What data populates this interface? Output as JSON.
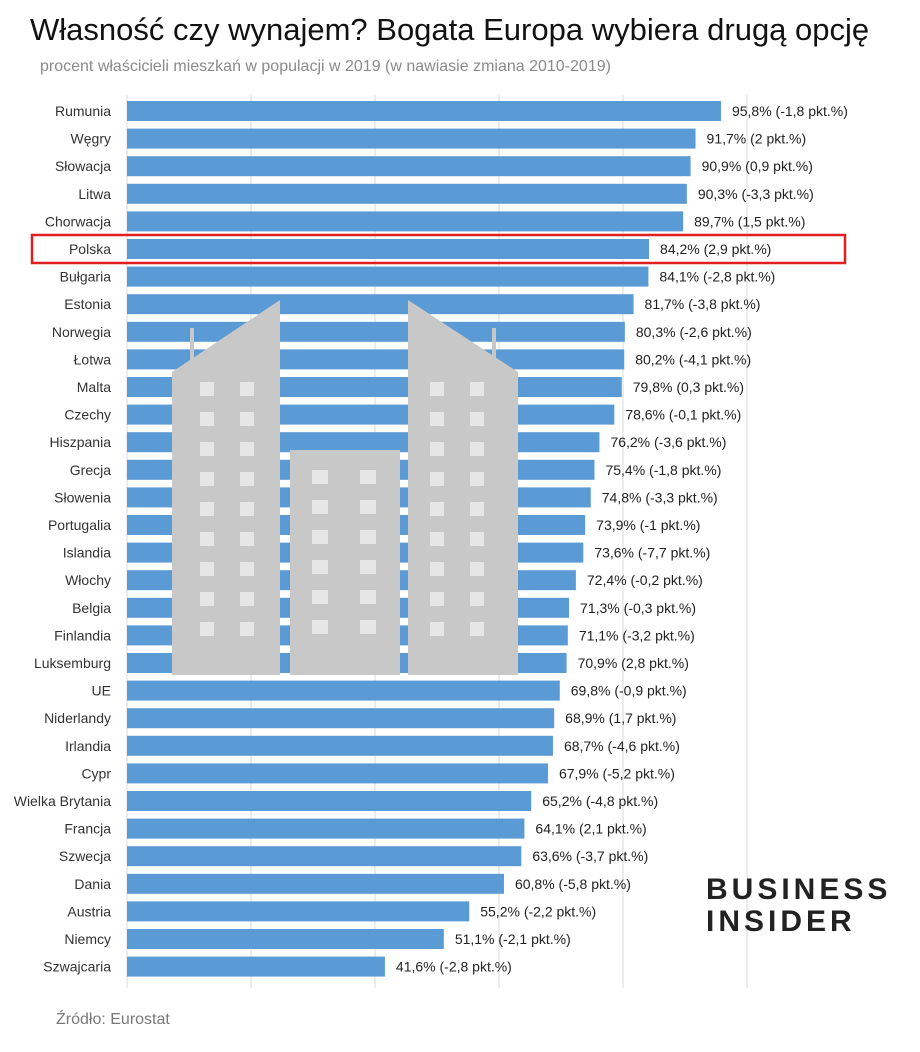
{
  "title": "Własność czy wynajem? Bogata Europa wybiera drugą opcję",
  "subtitle": "procent właścicieli mieszkań w populacji w 2019 (w nawiasie zmiana 2010-2019)",
  "source": "Źródło: Eurostat",
  "logo": {
    "line1": "BUSINESS",
    "line2": "INSIDER"
  },
  "highlight": "Polska",
  "colors": {
    "bar": "#5B9BD5",
    "highlight": "#E02020",
    "grid": "#d9d9d9",
    "building": "#c8c8c8"
  },
  "chart_data": {
    "type": "bar",
    "orientation": "horizontal",
    "title": "Własność czy wynajem? Bogata Europa wybiera drugą opcję",
    "xlabel": "",
    "ylabel": "",
    "xlim": [
      0,
      100
    ],
    "grid": true,
    "categories": [
      "Rumunia",
      "Węgry",
      "Słowacja",
      "Litwa",
      "Chorwacja",
      "Polska",
      "Bułgaria",
      "Estonia",
      "Norwegia",
      "Łotwa",
      "Malta",
      "Czechy",
      "Hiszpania",
      "Grecja",
      "Słowenia",
      "Portugalia",
      "Islandia",
      "Włochy",
      "Belgia",
      "Finlandia",
      "Luksemburg",
      "UE",
      "Niderlandy",
      "Irlandia",
      "Cypr",
      "Wielka Brytania",
      "Francja",
      "Szwecja",
      "Dania",
      "Austria",
      "Niemcy",
      "Szwajcaria"
    ],
    "values": [
      95.8,
      91.7,
      90.9,
      90.3,
      89.7,
      84.2,
      84.1,
      81.7,
      80.3,
      80.2,
      79.8,
      78.6,
      76.2,
      75.4,
      74.8,
      73.9,
      73.6,
      72.4,
      71.3,
      71.1,
      70.9,
      69.8,
      68.9,
      68.7,
      67.9,
      65.2,
      64.1,
      63.6,
      60.8,
      55.2,
      51.1,
      41.6
    ],
    "labels": [
      "95,8% (-1,8 pkt.%)",
      "91,7% (2 pkt.%)",
      "90,9% (0,9 pkt.%)",
      "90,3% (-3,3 pkt.%)",
      "89,7% (1,5 pkt.%)",
      "84,2% (2,9 pkt.%)",
      "84,1% (-2,8 pkt.%)",
      "81,7% (-3,8 pkt.%)",
      "80,3% (-2,6 pkt.%)",
      "80,2% (-4,1 pkt.%)",
      "79,8% (0,3 pkt.%)",
      "78,6% (-0,1 pkt.%)",
      "76,2% (-3,6 pkt.%)",
      "75,4% (-1,8 pkt.%)",
      "74,8% (-3,3 pkt.%)",
      "73,9% (-1 pkt.%)",
      "73,6% (-7,7 pkt.%)",
      "72,4% (-0,2 pkt.%)",
      "71,3% (-0,3 pkt.%)",
      "71,1% (-3,2 pkt.%)",
      "70,9% (2,8 pkt.%)",
      "69,8% (-0,9 pkt.%)",
      "68,9% (1,7 pkt.%)",
      "68,7% (-4,6 pkt.%)",
      "67,9% (-5,2 pkt.%)",
      "65,2% (-4,8 pkt.%)",
      "64,1% (2,1 pkt.%)",
      "63,6% (-3,7 pkt.%)",
      "60,8% (-5,8 pkt.%)",
      "55,2% (-2,2 pkt.%)",
      "51,1% (-2,1 pkt.%)",
      "41,6% (-2,8 pkt.%)"
    ]
  }
}
